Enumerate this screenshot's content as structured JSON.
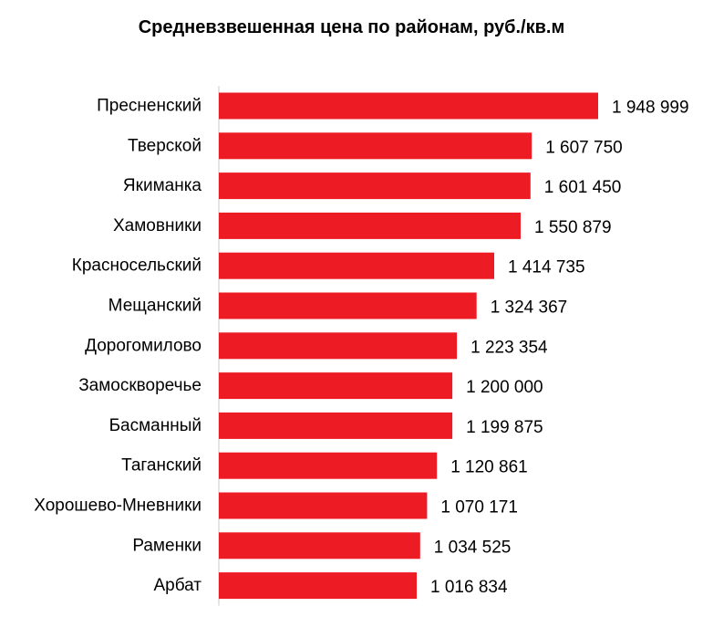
{
  "chart_data": {
    "type": "bar",
    "orientation": "horizontal",
    "title": "Средневзвешенная цена по районам, руб./кв.м",
    "xlabel": "",
    "ylabel": "",
    "grid": false,
    "legend": "none",
    "bar_color": "#ED1C24",
    "xlim": [
      0,
      1948999
    ],
    "categories": [
      "Пресненский",
      "Тверской",
      "Якиманка",
      "Хамовники",
      "Красносельский",
      "Мещанский",
      "Дорогомилово",
      "Замоскворечье",
      "Басманный",
      "Таганский",
      "Хорошево-Мневники",
      "Раменки",
      "Арбат"
    ],
    "values": [
      1948999,
      1607750,
      1601450,
      1550879,
      1414735,
      1324367,
      1223354,
      1200000,
      1199875,
      1120861,
      1070171,
      1034525,
      1016834
    ],
    "data_labels": [
      "1 948 999",
      "1 607 750",
      "1 601 450",
      "1 550 879",
      "1 414 735",
      "1 324 367",
      "1 223 354",
      "1 200 000",
      "1 199 875",
      "1 120 861",
      "1 070 171",
      "1 034 525",
      "1 016 834"
    ]
  }
}
